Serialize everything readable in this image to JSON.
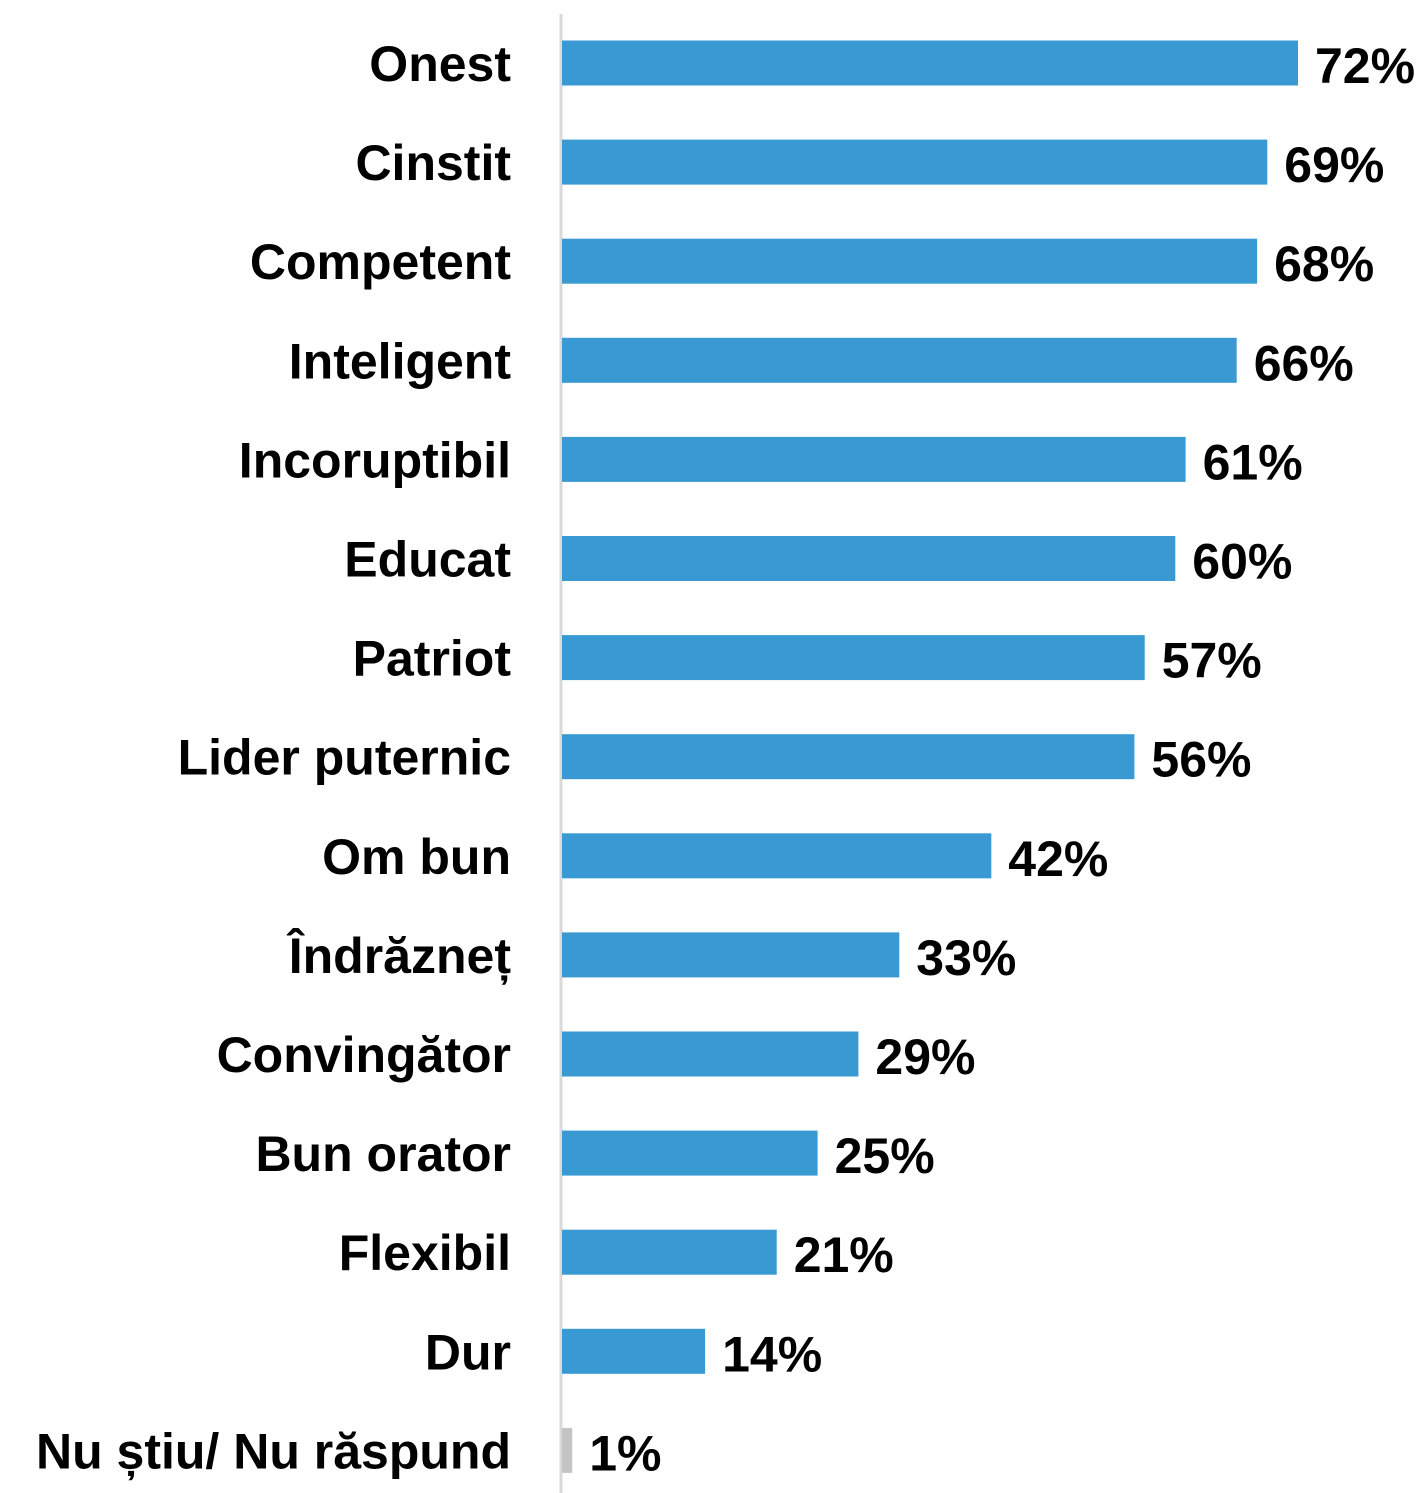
{
  "chart_data": {
    "type": "bar",
    "orientation": "horizontal",
    "categories": [
      "Onest",
      "Cinstit",
      "Competent",
      "Inteligent",
      "Incoruptibil",
      "Educat",
      "Patriot",
      "Lider puternic",
      "Om bun",
      "Îndrăzneț",
      "Convingător",
      "Bun orator",
      "Flexibil",
      "Dur",
      "Nu știu/ Nu răspund"
    ],
    "values": [
      72,
      69,
      68,
      66,
      61,
      60,
      57,
      56,
      42,
      33,
      29,
      25,
      21,
      14,
      1
    ],
    "value_labels": [
      "72%",
      "69%",
      "68%",
      "66%",
      "61%",
      "60%",
      "57%",
      "56%",
      "42%",
      "33%",
      "29%",
      "25%",
      "21%",
      "14%",
      "1%"
    ],
    "value_suffix": "%",
    "xlim": [
      0,
      72
    ],
    "grid": false,
    "legend": "none",
    "colors": {
      "bar": "#3899d3",
      "bar_no_answer": "#c4c4c4",
      "axis": "#d9d9d9",
      "text": "#000000"
    }
  }
}
